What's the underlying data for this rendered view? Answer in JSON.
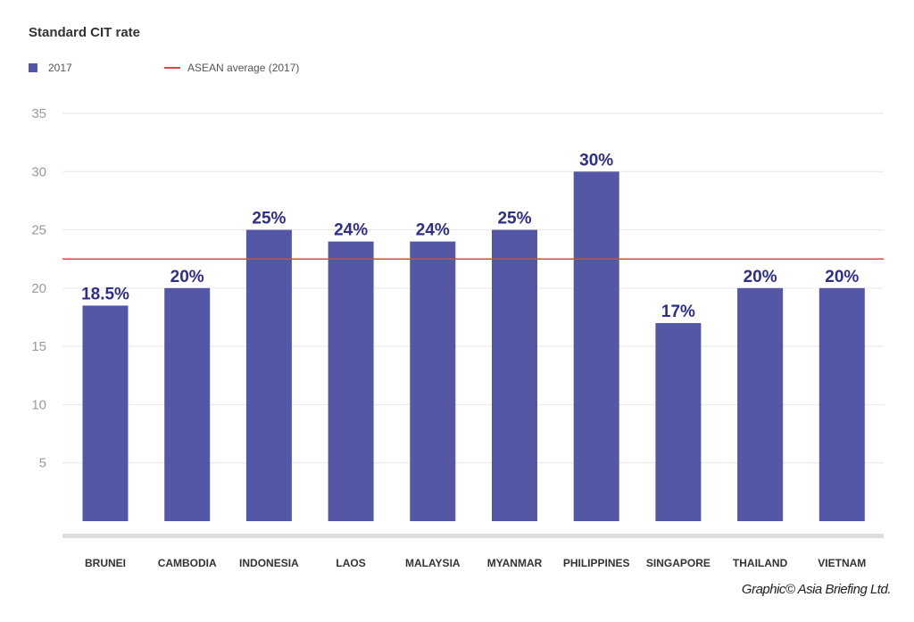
{
  "chart_data": {
    "type": "bar",
    "title": "Standard CIT rate",
    "categories": [
      "BRUNEI",
      "CAMBODIA",
      "INDONESIA",
      "LAOS",
      "MALAYSIA",
      "MYANMAR",
      "PHILIPPINES",
      "SINGAPORE",
      "THAILAND",
      "VIETNAM"
    ],
    "series": [
      {
        "name": "2017",
        "values": [
          18.5,
          20,
          25,
          24,
          24,
          25,
          30,
          17,
          20,
          20
        ],
        "color": "#5457a6"
      }
    ],
    "data_labels": [
      "18.5%",
      "20%",
      "25%",
      "24%",
      "24%",
      "25%",
      "30%",
      "17%",
      "20%",
      "20%"
    ],
    "reference_line": {
      "name": "ASEAN average (2017)",
      "value": 22.5,
      "color": "#e0453f"
    },
    "yticks": [
      5,
      10,
      15,
      20,
      25,
      30,
      35
    ],
    "ylim": [
      0,
      35
    ],
    "grid": true,
    "legend_position": "top-left",
    "credit": "Graphic© Asia Briefing Ltd.",
    "colors": {
      "label": "#2e2e8c",
      "grid": "#e6e6e6",
      "axis": "#dddddd"
    }
  }
}
